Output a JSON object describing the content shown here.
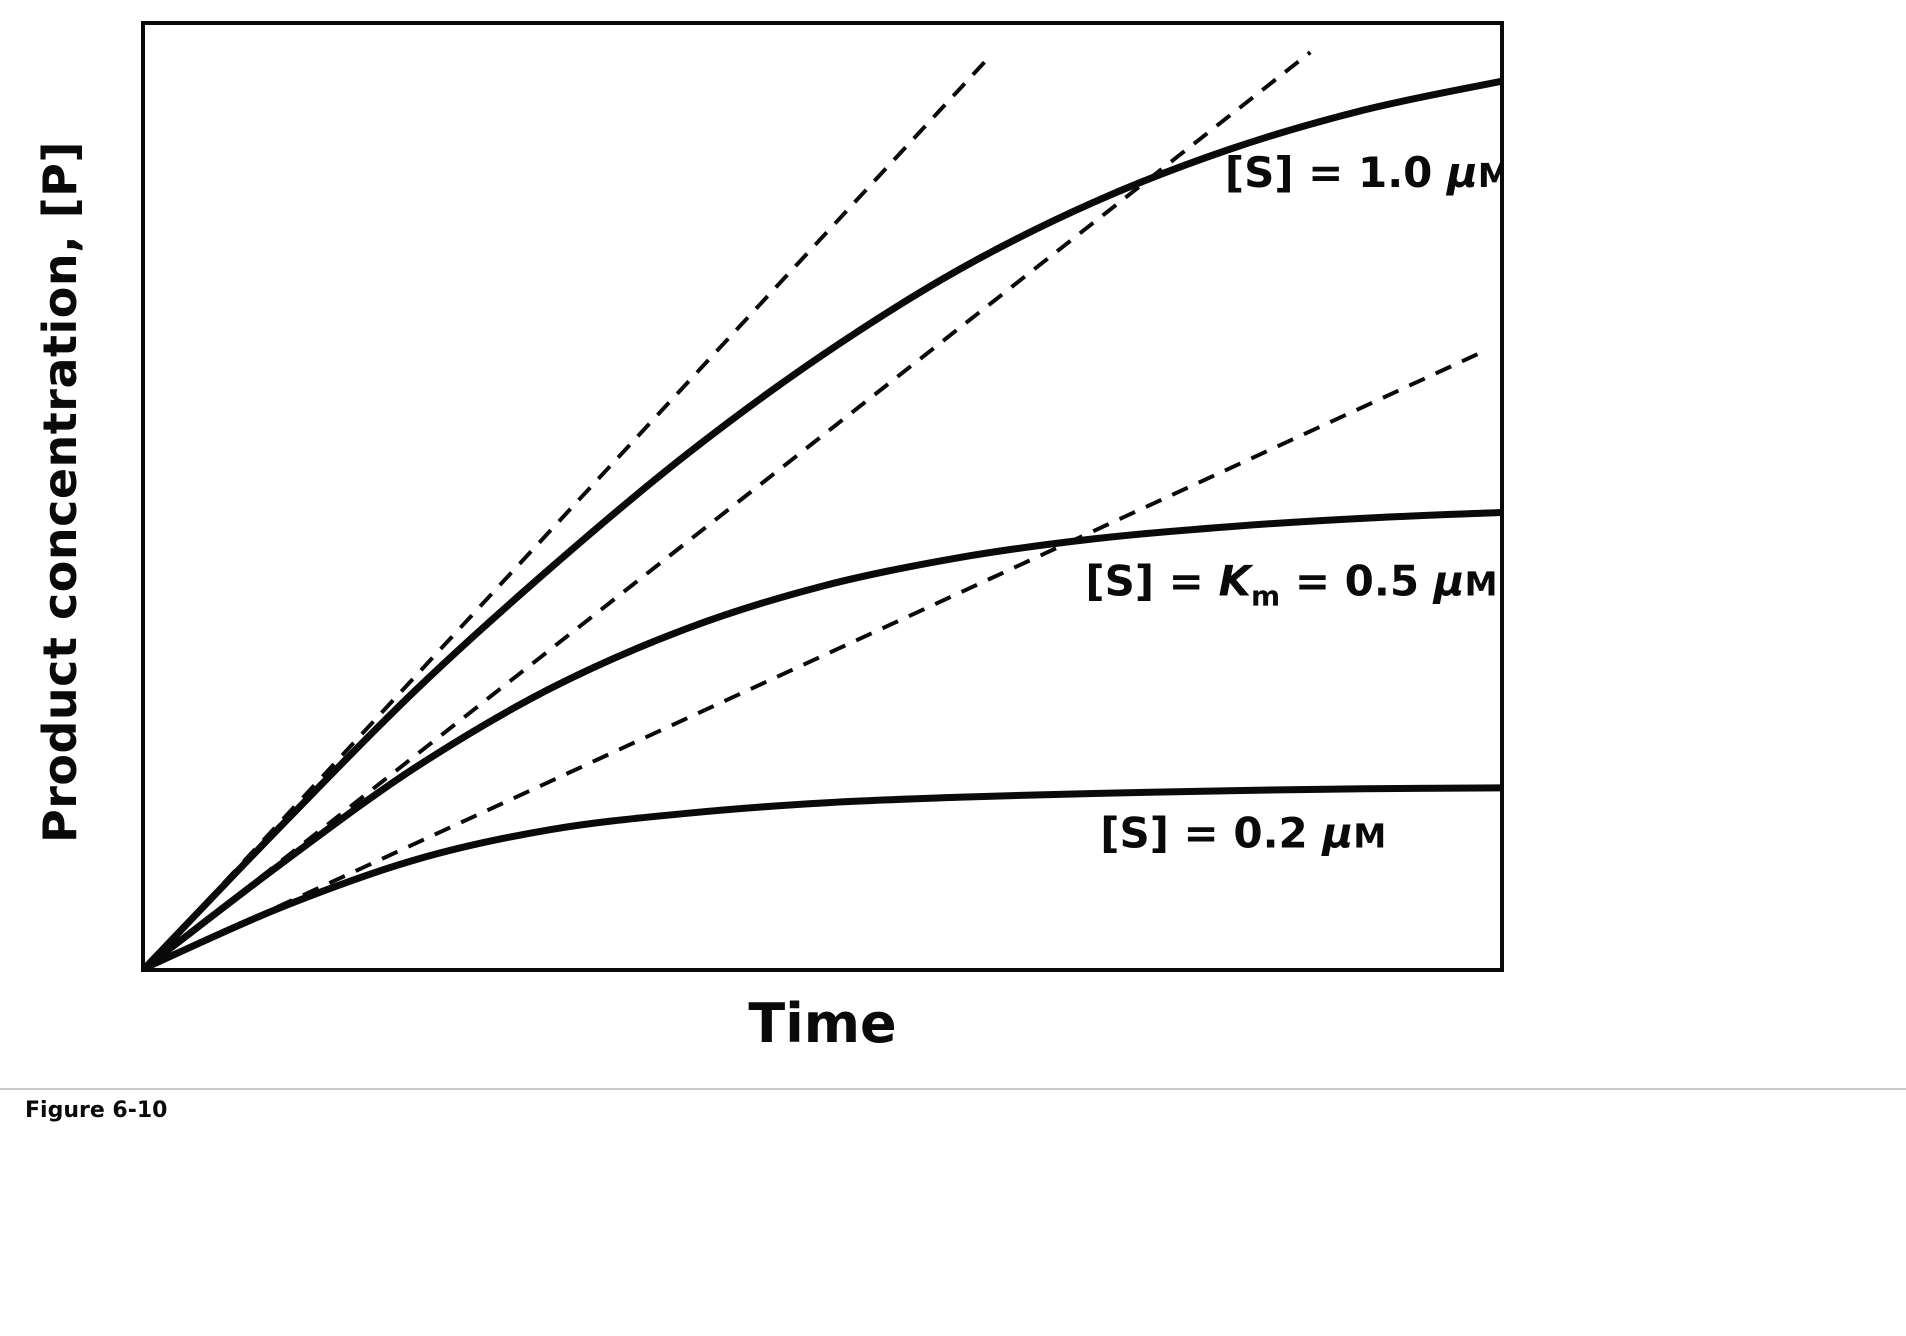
{
  "caption": "Figure 6-10",
  "chart_data": {
    "type": "line",
    "title": "",
    "xlabel": "Time",
    "ylabel": "Product concentration, [P]",
    "xlim": [
      0,
      1
    ],
    "ylim": [
      0,
      1
    ],
    "x_ticks": [],
    "y_ticks": [],
    "grid": false,
    "legend_position": "none",
    "colors": {
      "line": "#0a0a0a",
      "background": "#ffffff"
    },
    "series": [
      {
        "name": "[S] = 1.0 μM",
        "style": "solid",
        "x": [
          0,
          0.1,
          0.2,
          0.3,
          0.4,
          0.5,
          0.6,
          0.7,
          0.8,
          0.9,
          1.0
        ],
        "y": [
          0,
          0.15,
          0.295,
          0.425,
          0.545,
          0.65,
          0.74,
          0.812,
          0.868,
          0.91,
          0.94
        ]
      },
      {
        "name": "[S] = Km = 0.5 μM",
        "style": "solid",
        "x": [
          0,
          0.1,
          0.2,
          0.3,
          0.4,
          0.5,
          0.6,
          0.7,
          0.8,
          0.9,
          1.0
        ],
        "y": [
          0,
          0.11,
          0.213,
          0.297,
          0.36,
          0.405,
          0.435,
          0.455,
          0.468,
          0.477,
          0.483
        ]
      },
      {
        "name": "[S] = 0.2 μM",
        "style": "solid",
        "x": [
          0,
          0.1,
          0.2,
          0.3,
          0.4,
          0.5,
          0.6,
          0.7,
          0.8,
          0.9,
          1.0
        ],
        "y": [
          0,
          0.064,
          0.115,
          0.147,
          0.164,
          0.175,
          0.181,
          0.185,
          0.188,
          0.19,
          0.191
        ]
      }
    ],
    "tangents": [
      {
        "name": "initial-rate tangent, [S] = 1.0 μM",
        "style": "dashed",
        "from": [
          0,
          0
        ],
        "to": [
          0.623,
          0.966
        ]
      },
      {
        "name": "initial-rate tangent, [S] = 0.5 μM",
        "style": "dashed",
        "from": [
          0,
          0
        ],
        "to": [
          0.86,
          0.971
        ]
      },
      {
        "name": "initial-rate tangent, [S] = 0.2 μM",
        "style": "dashed",
        "from": [
          0,
          0
        ],
        "to": [
          0.985,
          0.652
        ]
      }
    ],
    "labels": [
      {
        "text": "[S] = 1.0 μM",
        "anchor": [
          0.797,
          0.828
        ],
        "segments": [
          {
            "t": "[S] = 1.0 ",
            "s": "plain"
          },
          {
            "t": "μ",
            "s": "italic"
          },
          {
            "t": "M",
            "s": "smallcap"
          }
        ]
      },
      {
        "text": "[S] = Km = 0.5 μM",
        "anchor": [
          0.694,
          0.395
        ],
        "segments": [
          {
            "t": "[S] = ",
            "s": "plain"
          },
          {
            "t": "K",
            "s": "italic"
          },
          {
            "t": "m",
            "s": "sub"
          },
          {
            "t": " = 0.5 ",
            "s": "plain"
          },
          {
            "t": "μ",
            "s": "italic"
          },
          {
            "t": "M",
            "s": "smallcap"
          }
        ]
      },
      {
        "text": "[S] = 0.2 μM",
        "anchor": [
          0.705,
          0.128
        ],
        "segments": [
          {
            "t": "[S] = 0.2 ",
            "s": "plain"
          },
          {
            "t": "μ",
            "s": "italic"
          },
          {
            "t": "M",
            "s": "smallcap"
          }
        ]
      }
    ]
  }
}
